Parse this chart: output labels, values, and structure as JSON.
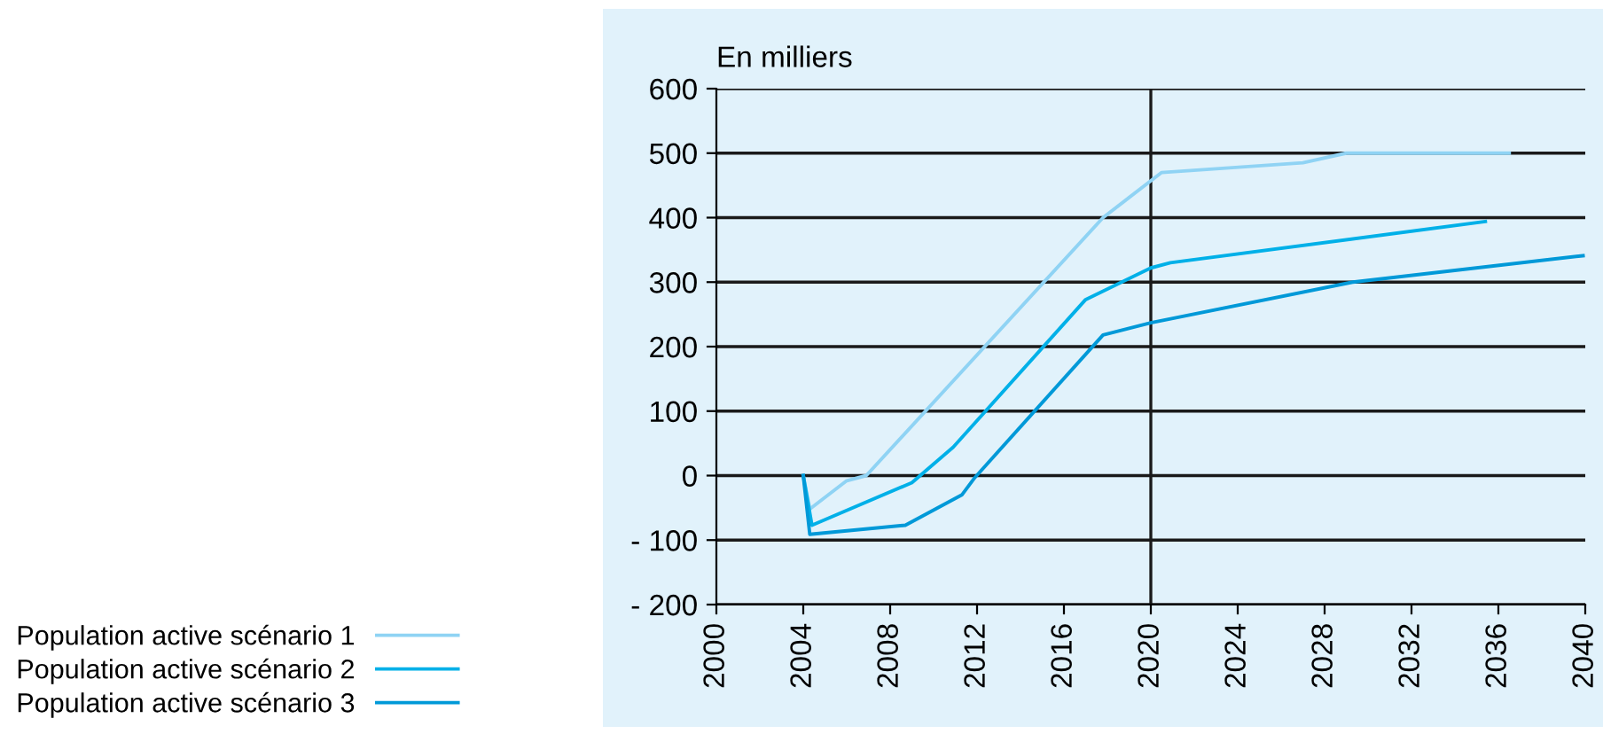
{
  "chart_data": {
    "type": "line",
    "ylabel": "En milliers",
    "xlim": [
      2000,
      2040
    ],
    "xticks": [
      2000,
      2004,
      2008,
      2012,
      2016,
      2020,
      2024,
      2028,
      2032,
      2036,
      2040
    ],
    "ylim": [
      -200,
      600
    ],
    "yticks": [
      {
        "value": -200,
        "label": "- 200"
      },
      {
        "value": -100,
        "label": "- 100"
      },
      0,
      100,
      200,
      300,
      400,
      500,
      600
    ],
    "grid": "y",
    "legend": "bottom left",
    "marker": "none",
    "line_style": "solid",
    "ref_lines": [
      {
        "axis": "x",
        "value": 2020,
        "color": "#1a1a1a"
      }
    ],
    "series": [
      {
        "name": "Population active scénario 1",
        "color": "#8fd3f4",
        "x": [
          2004,
          2004.3,
          2006,
          2006.9,
          2017.8,
          2020.5,
          2027,
          2029,
          2036.5
        ],
        "values": [
          0,
          -52,
          -8,
          0,
          400,
          470,
          485,
          500,
          500
        ]
      },
      {
        "name": "Population active scénario 2",
        "color": "#00b0e8",
        "x": [
          2004,
          2004.4,
          2009,
          2010.9,
          2017,
          2020,
          2020.9,
          2035.4
        ],
        "values": [
          0,
          -77,
          -11,
          44,
          273,
          322,
          330,
          394
        ]
      },
      {
        "name": "Population active scénario 3",
        "color": "#0099d8",
        "x": [
          2004,
          2004.3,
          2008.7,
          2011.3,
          2011.9,
          2017.8,
          2020,
          2029.3,
          2039.9
        ],
        "values": [
          0,
          -91,
          -77,
          -30,
          -3,
          218,
          237,
          300,
          341
        ]
      }
    ]
  }
}
